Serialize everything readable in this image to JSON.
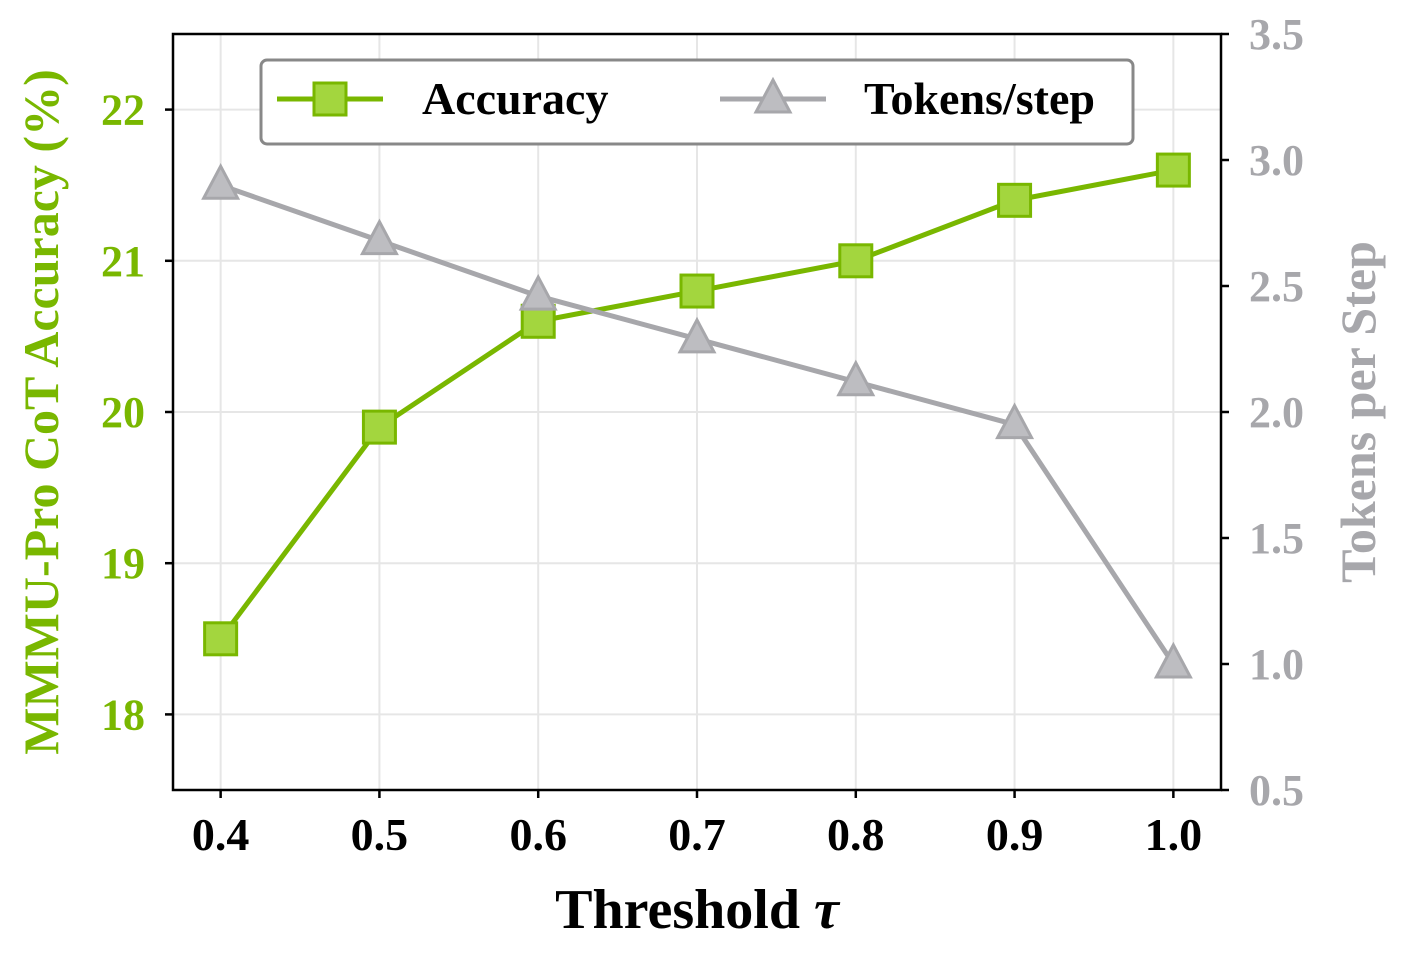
{
  "chart_data": {
    "type": "line",
    "xlabel": "Threshold",
    "xlabel_symbol": "τ",
    "ylabel_left": "MMMU-Pro CoT Accuracy (%)",
    "ylabel_right": "Tokens per Step",
    "x": [
      0.4,
      0.5,
      0.6,
      0.7,
      0.8,
      0.9,
      1.0
    ],
    "x_ticks": [
      "0.4",
      "0.5",
      "0.6",
      "0.7",
      "0.8",
      "0.9",
      "1.0"
    ],
    "xlim": [
      0.37,
      1.03
    ],
    "ylim_left": [
      17.5,
      22.5
    ],
    "y_ticks_left": [
      "18",
      "19",
      "20",
      "21",
      "22"
    ],
    "ylim_right": [
      0.5,
      3.5
    ],
    "y_ticks_right": [
      "0.5",
      "1.0",
      "1.5",
      "2.0",
      "2.5",
      "3.0",
      "3.5"
    ],
    "grid": true,
    "legend_placement": "top-center",
    "series": [
      {
        "name": "Accuracy",
        "axis": "left",
        "marker": "square",
        "color": "#79b700",
        "fill": "#a3d63e",
        "values": [
          18.5,
          19.9,
          20.6,
          20.8,
          21.0,
          21.4,
          21.6
        ]
      },
      {
        "name": "Tokens/step",
        "axis": "right",
        "marker": "triangle",
        "color": "#a7a7ab",
        "fill": "#bdbdc1",
        "values": [
          2.9,
          2.68,
          2.46,
          2.29,
          2.12,
          1.95,
          1.0
        ]
      }
    ],
    "colors": {
      "left_axis": "#79b700",
      "right_axis": "#a7a7ab"
    }
  }
}
